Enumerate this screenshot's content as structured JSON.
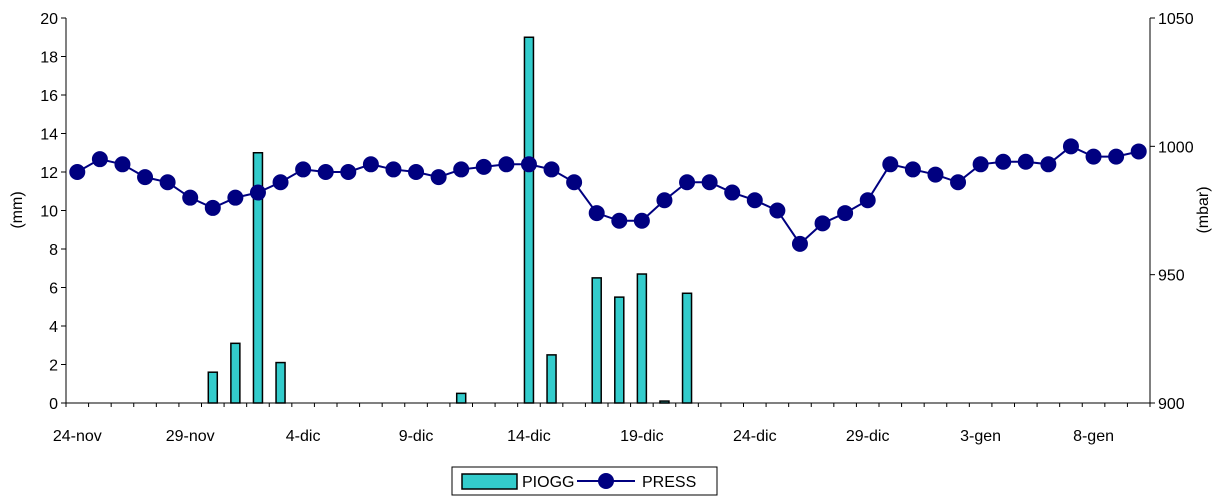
{
  "chart_data": {
    "type": "bar+line",
    "x": [
      "24-nov",
      "25-nov",
      "26-nov",
      "27-nov",
      "28-nov",
      "29-nov",
      "30-nov",
      "1-dic",
      "2-dic",
      "3-dic",
      "4-dic",
      "5-dic",
      "6-dic",
      "7-dic",
      "8-dic",
      "9-dic",
      "10-dic",
      "11-dic",
      "12-dic",
      "13-dic",
      "14-dic",
      "15-dic",
      "16-dic",
      "17-dic",
      "18-dic",
      "19-dic",
      "20-dic",
      "21-dic",
      "22-dic",
      "23-dic",
      "24-dic",
      "25-dic",
      "26-dic",
      "27-dic",
      "28-dic",
      "29-dic",
      "30-dic",
      "31-dic",
      "1-gen",
      "2-gen",
      "3-gen",
      "4-gen",
      "5-gen",
      "6-gen",
      "7-gen",
      "8-gen",
      "9-gen",
      "10-gen"
    ],
    "x_tick_labels": [
      "24-nov",
      "29-nov",
      "4-dic",
      "9-dic",
      "14-dic",
      "19-dic",
      "24-dic",
      "29-dic",
      "3-gen",
      "8-gen"
    ],
    "x_tick_every": 5,
    "y_left": {
      "label": "(mm)",
      "min": 0,
      "max": 20,
      "step": 2,
      "ticks": [
        "0",
        "2",
        "4",
        "6",
        "8",
        "10",
        "12",
        "14",
        "16",
        "18",
        "20"
      ]
    },
    "y_right": {
      "label": "(mbar)",
      "min": 900,
      "max": 1050,
      "step": 50,
      "ticks": [
        "900",
        "950",
        "1000",
        "1050"
      ]
    },
    "grid": false,
    "legend_position": "bottom",
    "series": [
      {
        "name": "PIOGG",
        "kind": "bar",
        "axis": "left",
        "color": "#33CCCC",
        "values": [
          0,
          0,
          0,
          0,
          0,
          0,
          1.6,
          3.1,
          13.0,
          2.1,
          0,
          0,
          0,
          0,
          0,
          0,
          0,
          0.5,
          0,
          0,
          19.0,
          2.5,
          0,
          6.5,
          5.5,
          6.7,
          0.1,
          5.7,
          0,
          0,
          0,
          0,
          0,
          0,
          0,
          0,
          0,
          0,
          0,
          0,
          0,
          0,
          0,
          0,
          0,
          0,
          0,
          0
        ]
      },
      {
        "name": "PRESS",
        "kind": "line",
        "axis": "right",
        "color": "#000080",
        "values": [
          990,
          995,
          993,
          988,
          986,
          980,
          976,
          980,
          982,
          986,
          991,
          990,
          990,
          993,
          991,
          990,
          988,
          991,
          992,
          993,
          993,
          991,
          986,
          974,
          971,
          971,
          979,
          986,
          986,
          982,
          979,
          975,
          962,
          970,
          974,
          979,
          993,
          991,
          989,
          986,
          993,
          994,
          994,
          993,
          1000,
          996,
          996,
          998
        ]
      }
    ]
  }
}
